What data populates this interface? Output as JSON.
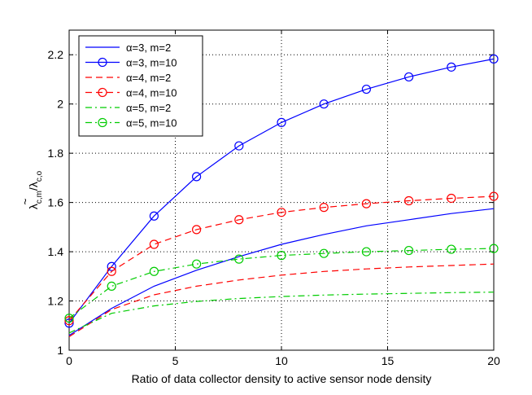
{
  "chart_data": {
    "type": "line",
    "title": "",
    "xlabel": "Ratio of data collector density to active sensor node density",
    "ylabel": {
      "main": "λ",
      "tilde": "~",
      "sub1": "c,m",
      "slash": "/λ",
      "sub2": "c,o"
    },
    "xlim": [
      0,
      20
    ],
    "ylim": [
      1,
      2.3
    ],
    "xticks": [
      0,
      5,
      10,
      15,
      20
    ],
    "yticks": [
      1,
      1.2,
      1.4,
      1.6,
      1.8,
      2,
      2.2
    ],
    "xtick_labels": [
      "0",
      "5",
      "10",
      "15",
      "20"
    ],
    "ytick_labels": [
      "1",
      "1.2",
      "1.4",
      "1.6",
      "1.8",
      "2",
      "2.2"
    ],
    "grid": true,
    "legend_position": "top-left",
    "series": [
      {
        "name": "α=3, m=2",
        "color": "#0000ff",
        "line": "solid",
        "marker": "none",
        "x": [
          0,
          2,
          4,
          6,
          8,
          10,
          12,
          14,
          16,
          18,
          20
        ],
        "y": [
          1.06,
          1.17,
          1.26,
          1.325,
          1.38,
          1.43,
          1.47,
          1.505,
          1.53,
          1.555,
          1.575
        ]
      },
      {
        "name": "α=3, m=10",
        "color": "#0000ff",
        "line": "solid",
        "marker": "circle",
        "x": [
          0,
          2,
          4,
          6,
          8,
          10,
          12,
          14,
          16,
          18,
          20
        ],
        "y": [
          1.11,
          1.34,
          1.545,
          1.705,
          1.83,
          1.925,
          2.0,
          2.06,
          2.11,
          2.15,
          2.183
        ]
      },
      {
        "name": "α=4, m=2",
        "color": "#ff0000",
        "line": "dashed",
        "marker": "none",
        "x": [
          0,
          2,
          4,
          6,
          8,
          10,
          12,
          14,
          16,
          18,
          20
        ],
        "y": [
          1.055,
          1.165,
          1.225,
          1.26,
          1.285,
          1.305,
          1.32,
          1.33,
          1.338,
          1.344,
          1.35
        ]
      },
      {
        "name": "α=4, m=10",
        "color": "#ff0000",
        "line": "dashed",
        "marker": "circle",
        "x": [
          0,
          2,
          4,
          6,
          8,
          10,
          12,
          14,
          16,
          18,
          20
        ],
        "y": [
          1.12,
          1.32,
          1.43,
          1.49,
          1.53,
          1.56,
          1.58,
          1.595,
          1.607,
          1.617,
          1.625
        ]
      },
      {
        "name": "α=5, m=2",
        "color": "#00cc00",
        "line": "dashdot",
        "marker": "none",
        "x": [
          0,
          2,
          4,
          6,
          8,
          10,
          12,
          14,
          16,
          18,
          20
        ],
        "y": [
          1.07,
          1.15,
          1.18,
          1.198,
          1.21,
          1.218,
          1.224,
          1.228,
          1.231,
          1.234,
          1.236
        ]
      },
      {
        "name": "α=5, m=10",
        "color": "#00cc00",
        "line": "dashdot",
        "marker": "circle",
        "x": [
          0,
          2,
          4,
          6,
          8,
          10,
          12,
          14,
          16,
          18,
          20
        ],
        "y": [
          1.13,
          1.26,
          1.32,
          1.35,
          1.37,
          1.385,
          1.393,
          1.4,
          1.405,
          1.41,
          1.413
        ]
      }
    ]
  }
}
